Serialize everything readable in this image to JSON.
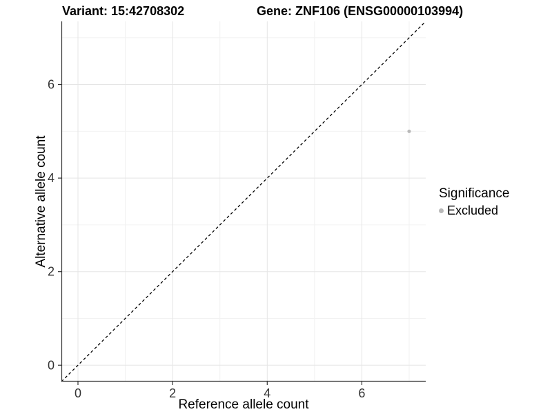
{
  "chart_data": {
    "type": "scatter",
    "title_left": "Variant: 15:42708302",
    "title_right": "Gene: ZNF106 (ENSG00000103994)",
    "xlabel": "Reference allele count",
    "ylabel": "Alternative allele count",
    "xlim": [
      -0.35,
      7.35
    ],
    "ylim": [
      -0.35,
      7.35
    ],
    "x_major_ticks": [
      0,
      2,
      4,
      6
    ],
    "y_major_ticks": [
      0,
      2,
      4,
      6
    ],
    "x_minor_ticks": [
      1,
      3,
      5,
      7
    ],
    "y_minor_ticks": [
      1,
      3,
      5,
      7
    ],
    "grid": true,
    "legend_position": "right",
    "identity_line": {
      "x1": -0.35,
      "y1": -0.35,
      "x2": 7.35,
      "y2": 7.35,
      "style": "dashed",
      "color": "#000000"
    },
    "points": [
      {
        "x": 7,
        "y": 5,
        "series": "Excluded"
      }
    ],
    "legend": {
      "title": "Significance",
      "items": [
        {
          "label": "Excluded",
          "color": "#b9b9b9"
        }
      ]
    },
    "colors": {
      "point": "#b9b9b9",
      "grid_major": "#e5e5e5",
      "grid_minor": "#f2f2f2",
      "axis_line": "#333333",
      "tick_text": "#333333",
      "title_text": "#000000"
    }
  }
}
